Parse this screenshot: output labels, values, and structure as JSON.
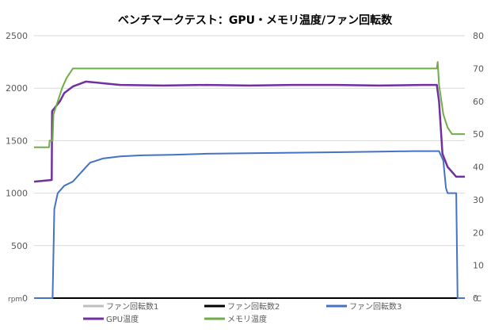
{
  "chart_data": {
    "type": "line",
    "title": "ベンチマークテスト：GPU・メモリ温度/ファン回転数",
    "x": [
      0,
      3,
      6,
      8,
      12,
      18,
      24,
      30,
      40,
      50,
      60,
      70,
      80,
      90,
      100
    ],
    "y_left": {
      "unit": "rpm",
      "range": [
        0,
        2500
      ],
      "ticks": [
        "0",
        "500",
        "1000",
        "1500",
        "2000",
        "2500"
      ]
    },
    "y_right": {
      "unit": "℃",
      "range": [
        0,
        80
      ],
      "ticks": [
        "0",
        "10",
        "20",
        "30",
        "40",
        "50",
        "60",
        "70",
        "80"
      ]
    },
    "grid": true,
    "legend_position": "bottom",
    "series": [
      {
        "name": "ファン回転数1",
        "axis": "left",
        "color": "#bfbfbf",
        "values": [
          0,
          0,
          0,
          0,
          0,
          0,
          0,
          0,
          0,
          0,
          0,
          0,
          0,
          0,
          0
        ]
      },
      {
        "name": "ファン回転数2",
        "axis": "left",
        "color": "#000000",
        "values": [
          0,
          0,
          0,
          0,
          0,
          0,
          0,
          0,
          0,
          0,
          0,
          0,
          0,
          0,
          0
        ]
      },
      {
        "name": "ファン回転数3",
        "axis": "left",
        "color": "#4472c4",
        "points": [
          [
            0,
            0
          ],
          [
            4.3,
            0
          ],
          [
            4.7,
            850
          ],
          [
            5.5,
            1000
          ],
          [
            7,
            1070
          ],
          [
            9,
            1110
          ],
          [
            11,
            1200
          ],
          [
            13,
            1290
          ],
          [
            16,
            1330
          ],
          [
            20,
            1350
          ],
          [
            25,
            1360
          ],
          [
            32,
            1365
          ],
          [
            40,
            1375
          ],
          [
            50,
            1380
          ],
          [
            60,
            1385
          ],
          [
            70,
            1390
          ],
          [
            80,
            1395
          ],
          [
            88,
            1400
          ],
          [
            94,
            1400
          ],
          [
            95,
            1310
          ],
          [
            95.6,
            1050
          ],
          [
            96,
            1000
          ],
          [
            98,
            1000
          ],
          [
            98.3,
            0
          ],
          [
            100,
            0
          ]
        ]
      },
      {
        "name": "GPU温度",
        "axis": "right",
        "color": "#7030a0",
        "points": [
          [
            0,
            35.5
          ],
          [
            4.1,
            36
          ],
          [
            4.2,
            57
          ],
          [
            4.8,
            58
          ],
          [
            6,
            60
          ],
          [
            7,
            62.5
          ],
          [
            9,
            64.5
          ],
          [
            12,
            66
          ],
          [
            16,
            65.5
          ],
          [
            20,
            65
          ],
          [
            30,
            64.8
          ],
          [
            40,
            65
          ],
          [
            50,
            64.8
          ],
          [
            60,
            65
          ],
          [
            70,
            65
          ],
          [
            80,
            64.8
          ],
          [
            90,
            65
          ],
          [
            93.5,
            65
          ],
          [
            94,
            60
          ],
          [
            94.8,
            44
          ],
          [
            96,
            40
          ],
          [
            98,
            37
          ],
          [
            100,
            37
          ]
        ]
      },
      {
        "name": "メモリ温度",
        "axis": "right",
        "color": "#70ad47",
        "points": [
          [
            0,
            46
          ],
          [
            3.5,
            46
          ],
          [
            3.6,
            48
          ],
          [
            4.3,
            48
          ],
          [
            4.5,
            56
          ],
          [
            5.5,
            60
          ],
          [
            6.5,
            64
          ],
          [
            7.5,
            67
          ],
          [
            9,
            70
          ],
          [
            50,
            70
          ],
          [
            93.5,
            70
          ],
          [
            93.7,
            72
          ],
          [
            94,
            65
          ],
          [
            95,
            56
          ],
          [
            96,
            52
          ],
          [
            97,
            50
          ],
          [
            100,
            50
          ]
        ]
      }
    ]
  }
}
